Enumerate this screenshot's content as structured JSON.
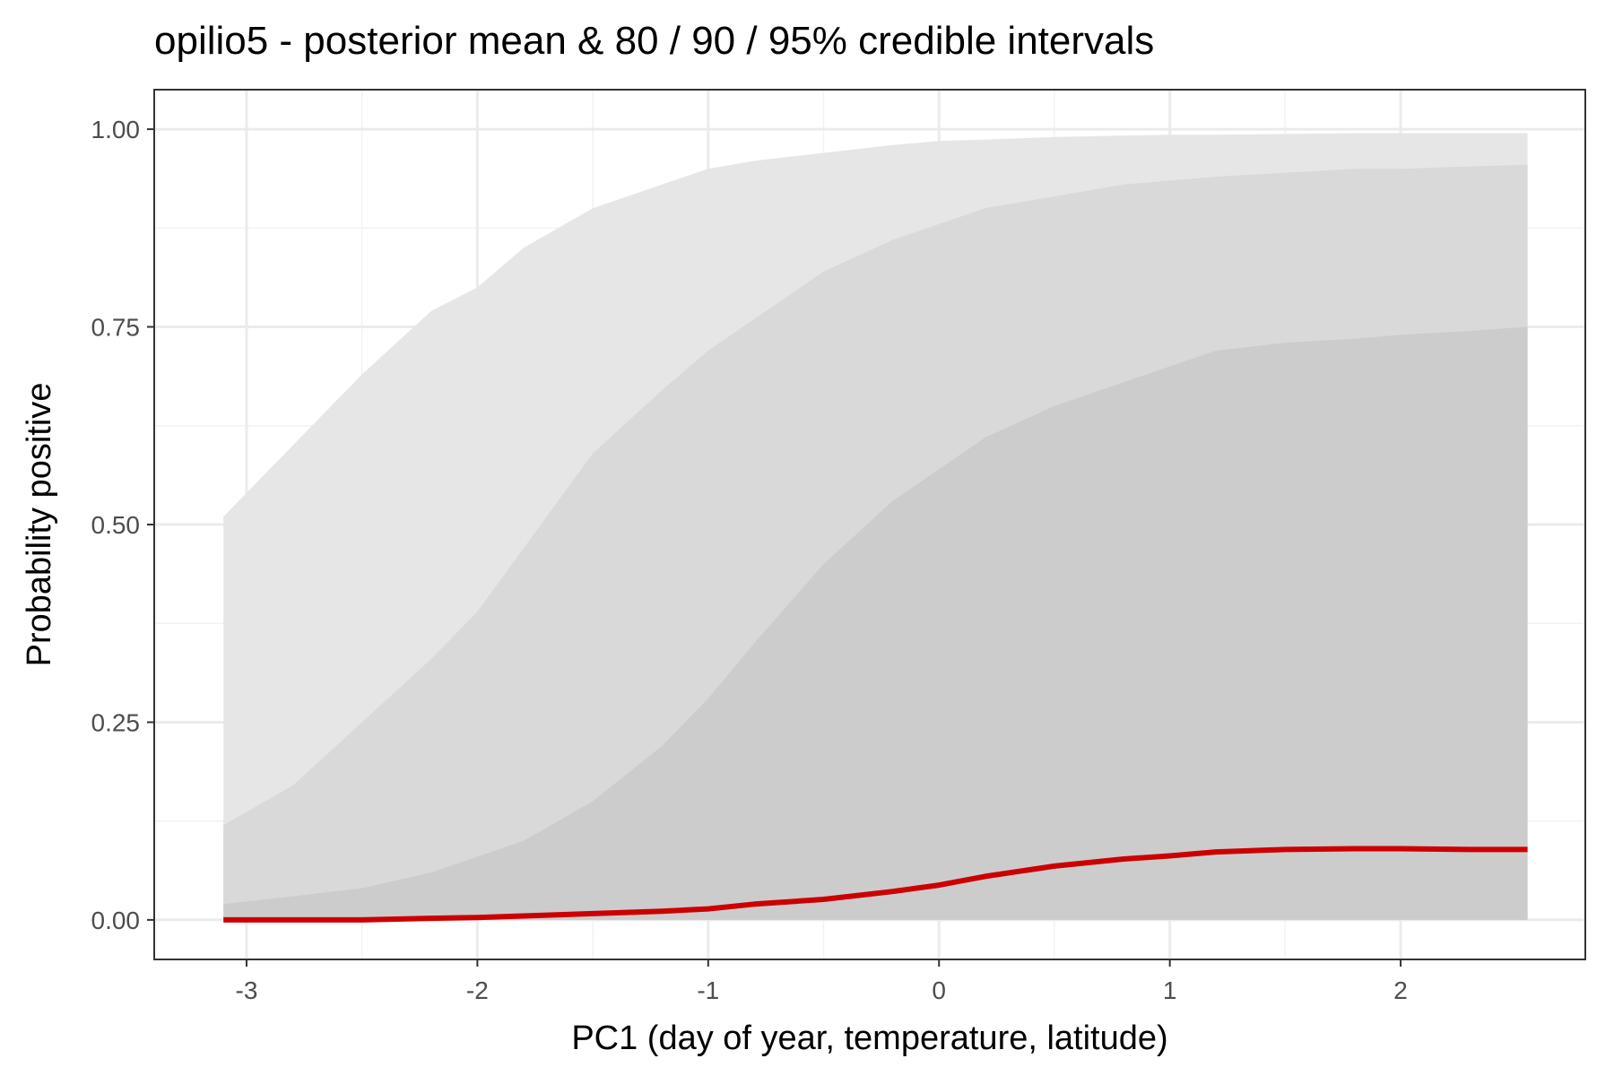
{
  "chart_data": {
    "type": "area",
    "title": "opilio5 - posterior mean & 80 / 90 / 95% credible intervals",
    "xlabel": "PC1 (day of year, temperature, latitude)",
    "ylabel": "Probability positive",
    "xlim": [
      -3.4,
      2.8
    ],
    "ylim": [
      -0.05,
      1.05
    ],
    "x_ticks": [
      -3,
      -2,
      -1,
      0,
      1,
      2
    ],
    "x_tick_labels": [
      "-3",
      "-2",
      "-1",
      "0",
      "1",
      "2"
    ],
    "y_ticks": [
      0,
      0.25,
      0.5,
      0.75,
      1
    ],
    "y_tick_labels": [
      "0.00",
      "0.25",
      "0.50",
      "0.75",
      "1.00"
    ],
    "grid": true,
    "x": [
      -3.1,
      -2.8,
      -2.5,
      -2.2,
      -2.0,
      -1.8,
      -1.5,
      -1.2,
      -1.0,
      -0.8,
      -0.5,
      -0.2,
      0.0,
      0.2,
      0.5,
      0.8,
      1.0,
      1.2,
      1.5,
      1.8,
      2.0,
      2.3,
      2.55
    ],
    "series": [
      {
        "lower": [
          0.0,
          0.0,
          0.0,
          0.0,
          0.0,
          0.0,
          0.0,
          0.0,
          0.0,
          0.0,
          0.0,
          0.0,
          0.0,
          0.0,
          0.0,
          0.0,
          0.0,
          0.0,
          0.0,
          0.0,
          0.0,
          0.0,
          0.0
        ],
        "upper": [
          0.51,
          0.6,
          0.69,
          0.77,
          0.8,
          0.85,
          0.9,
          0.93,
          0.95,
          0.96,
          0.97,
          0.98,
          0.985,
          0.987,
          0.99,
          0.992,
          0.993,
          0.993,
          0.994,
          0.995,
          0.995,
          0.995,
          0.995
        ],
        "color": "#e6e6e6"
      },
      {
        "lower": [
          0.0,
          0.0,
          0.0,
          0.0,
          0.0,
          0.0,
          0.0,
          0.0,
          0.0,
          0.0,
          0.0,
          0.0,
          0.0,
          0.0,
          0.0,
          0.0,
          0.0,
          0.0,
          0.0,
          0.0,
          0.0,
          0.0,
          0.0
        ],
        "upper": [
          0.12,
          0.17,
          0.25,
          0.33,
          0.39,
          0.47,
          0.59,
          0.67,
          0.72,
          0.76,
          0.82,
          0.86,
          0.88,
          0.9,
          0.915,
          0.93,
          0.935,
          0.94,
          0.945,
          0.95,
          0.95,
          0.953,
          0.955
        ],
        "color": "#d9d9d9"
      },
      {
        "lower": [
          0.0,
          0.0,
          0.0,
          0.0,
          0.0,
          0.0,
          0.0,
          0.0,
          0.0,
          0.0,
          0.0,
          0.0,
          0.0,
          0.0,
          0.0,
          0.0,
          0.0,
          0.0,
          0.0,
          0.0,
          0.0,
          0.0,
          0.0
        ],
        "upper": [
          0.02,
          0.03,
          0.04,
          0.06,
          0.08,
          0.1,
          0.15,
          0.22,
          0.28,
          0.35,
          0.45,
          0.53,
          0.57,
          0.61,
          0.65,
          0.68,
          0.7,
          0.72,
          0.73,
          0.735,
          0.74,
          0.745,
          0.75
        ],
        "color": "#cccccc"
      },
      {
        "y": [
          0.0,
          0.0,
          0.0,
          0.002,
          0.003,
          0.005,
          0.008,
          0.011,
          0.014,
          0.02,
          0.026,
          0.036,
          0.044,
          0.055,
          0.068,
          0.077,
          0.081,
          0.086,
          0.089,
          0.09,
          0.09,
          0.089,
          0.089
        ],
        "color": "#cc0000"
      }
    ]
  }
}
